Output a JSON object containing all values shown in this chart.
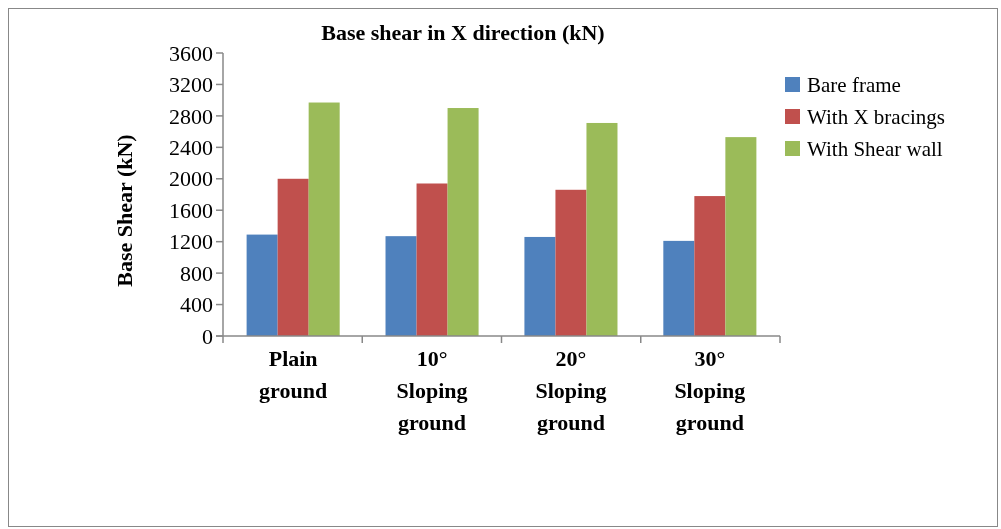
{
  "chart_data": {
    "type": "bar",
    "title": "Base shear in X direction (kN)",
    "ylabel": "Base Shear (kN)",
    "categories": [
      "Plain ground",
      "10° Sloping ground",
      "20° Sloping ground",
      "30° Sloping ground"
    ],
    "series": [
      {
        "name": "Bare frame",
        "color": "#4f81bd",
        "values": [
          1290,
          1270,
          1260,
          1210
        ]
      },
      {
        "name": "With X bracings",
        "color": "#c0504d",
        "values": [
          2000,
          1940,
          1860,
          1780
        ]
      },
      {
        "name": "With Shear wall",
        "color": "#9bbb59",
        "values": [
          2970,
          2900,
          2710,
          2530
        ]
      }
    ],
    "ylim": [
      0,
      3600
    ],
    "yticks": [
      0,
      400,
      800,
      1200,
      1600,
      2000,
      2400,
      2800,
      3200,
      3600
    ],
    "grid": false,
    "legend": "right"
  }
}
